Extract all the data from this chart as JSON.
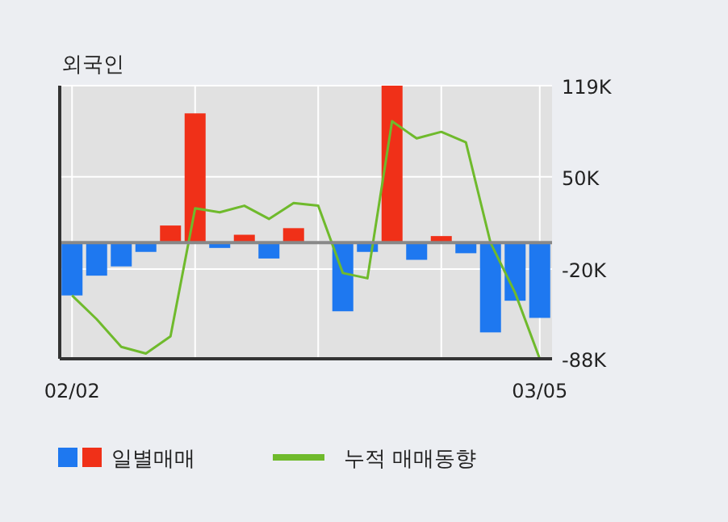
{
  "chart_data": {
    "type": "bar",
    "title": "외국인",
    "categories": [
      "02/02",
      null,
      null,
      null,
      null,
      null,
      null,
      null,
      null,
      null,
      null,
      null,
      null,
      null,
      null,
      null,
      null,
      null,
      null,
      "03/05"
    ],
    "series": [
      {
        "name": "일별매매",
        "colors": [
          "#1e78f0",
          "#1e78f0",
          "#1e78f0",
          "#1e78f0",
          "#f03018",
          "#f03018",
          "#1e78f0",
          "#f03018",
          "#1e78f0",
          "#f03018",
          "#1e78f0",
          "#1e78f0",
          "#1e78f0",
          "#f03018",
          "#1e78f0",
          "#f03018",
          "#1e78f0",
          "#1e78f0",
          "#1e78f0",
          "#1e78f0"
        ],
        "values": [
          -40000,
          -25000,
          -18000,
          -7000,
          13000,
          98000,
          -4000,
          6000,
          -12000,
          11000,
          0,
          -52000,
          -7000,
          119000,
          -13000,
          5000,
          -8000,
          -68000,
          -44000,
          -57000
        ]
      },
      {
        "name": "누적 매매동향",
        "type": "line",
        "color": "#6fba2c",
        "values": [
          -40000,
          -58000,
          -79000,
          -84000,
          -71000,
          26000,
          23000,
          28000,
          18000,
          30000,
          28000,
          -23000,
          -27000,
          92000,
          79000,
          84000,
          76000,
          0,
          -38000,
          -88000
        ]
      }
    ],
    "ylim": [
      -88000,
      119000
    ],
    "yticks": [
      {
        "value": 119000,
        "label": "119K"
      },
      {
        "value": 50000,
        "label": "50K"
      },
      {
        "value": -20000,
        "label": "-20K"
      },
      {
        "value": -88000,
        "label": "-88K"
      }
    ],
    "grid": true,
    "legend": "bottom"
  }
}
